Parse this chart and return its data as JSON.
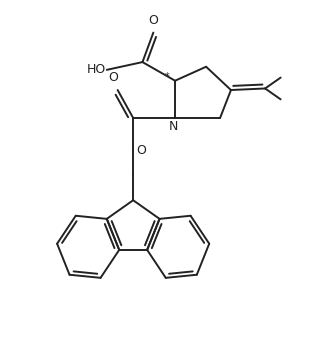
{
  "background_color": "#ffffff",
  "line_color": "#222222",
  "line_width": 1.4,
  "figsize": [
    3.16,
    3.57
  ],
  "dpi": 100,
  "xlim": [
    0,
    10
  ],
  "ylim": [
    0,
    11.3
  ]
}
